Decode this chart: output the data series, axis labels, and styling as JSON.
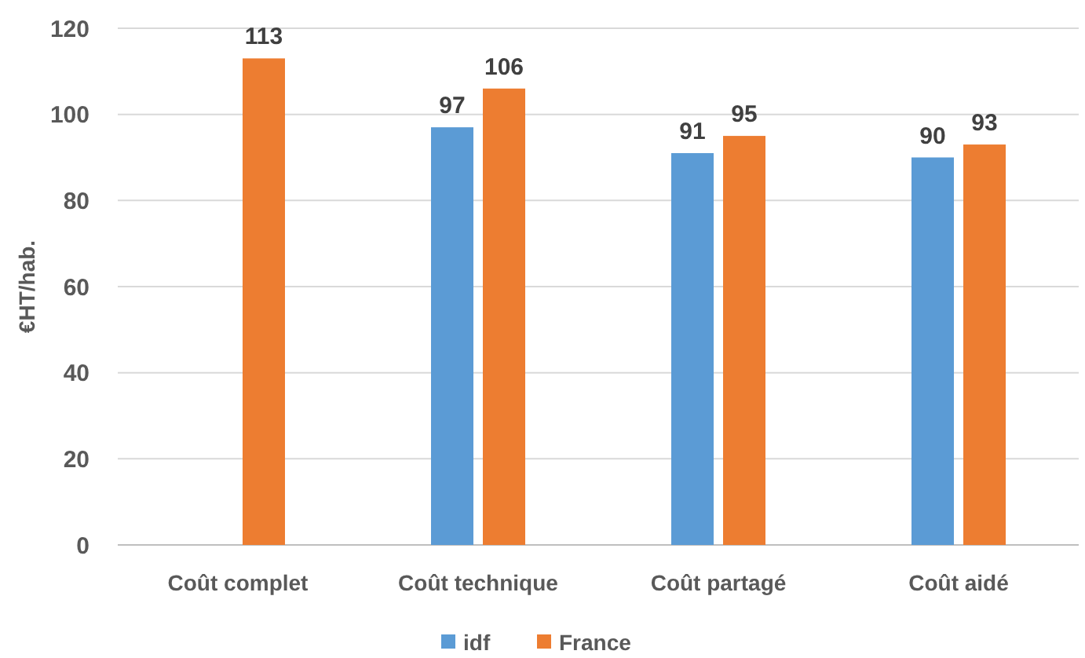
{
  "chart_data": {
    "type": "bar",
    "ylabel": "€HT/hab.",
    "categories": [
      "Coût complet",
      "Coût technique",
      "Coût partagé",
      "Coût aidé"
    ],
    "series": [
      {
        "name": "idf",
        "color": "#5b9bd5",
        "values": [
          null,
          97,
          91,
          90
        ]
      },
      {
        "name": "France",
        "color": "#ed7d31",
        "values": [
          113,
          106,
          95,
          93
        ]
      }
    ],
    "ylim": [
      0,
      120
    ],
    "yticks": [
      0,
      20,
      40,
      60,
      80,
      100,
      120
    ],
    "grid": "y",
    "legend": "bottom",
    "data_labels": true
  }
}
